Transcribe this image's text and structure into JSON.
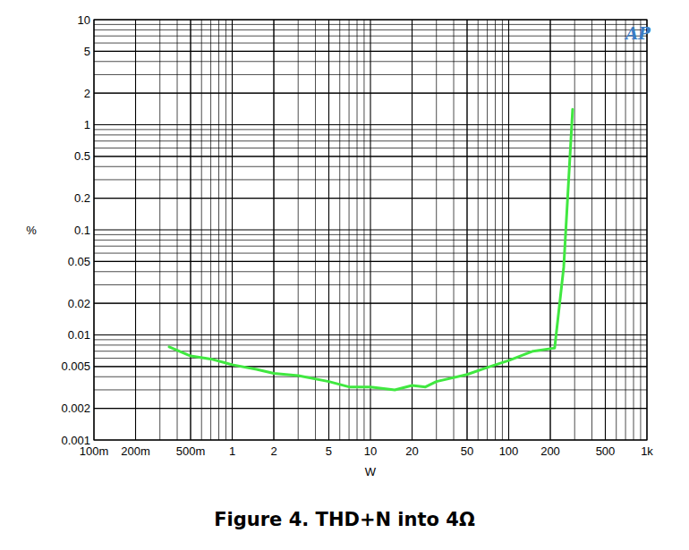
{
  "chart_data": {
    "type": "line",
    "title": "Figure 4. THD+N into 4Ω",
    "x_label": "W",
    "y_label": "%",
    "annotations": [
      "AP"
    ],
    "log": true,
    "grid": true,
    "color": "#40e840",
    "xlim": [
      0.1,
      1000
    ],
    "ylim": [
      0.001,
      10
    ],
    "xticks": [
      {
        "value": 0.1,
        "label": "100m"
      },
      {
        "value": 0.2,
        "label": "200m"
      },
      {
        "value": 0.5,
        "label": "500m"
      },
      1,
      2,
      5,
      10,
      20,
      50,
      100,
      200,
      500,
      {
        "value": 1000,
        "label": "1k"
      }
    ],
    "yticks": [
      0.001,
      0.002,
      0.005,
      0.01,
      0.02,
      0.05,
      0.1,
      0.2,
      0.5,
      1,
      2,
      5,
      10
    ],
    "x": [
      0.35,
      0.5,
      0.7,
      1,
      1.5,
      2,
      3,
      5,
      7,
      10,
      15,
      20,
      25,
      30,
      50,
      70,
      100,
      150,
      200,
      215,
      250,
      290
    ],
    "values": [
      0.0077,
      0.0063,
      0.0059,
      0.0052,
      0.0047,
      0.0043,
      0.0041,
      0.0036,
      0.0032,
      0.0032,
      0.003,
      0.0033,
      0.0032,
      0.0036,
      0.0042,
      0.0049,
      0.0057,
      0.007,
      0.0074,
      0.0075,
      0.044,
      1.4
    ]
  }
}
